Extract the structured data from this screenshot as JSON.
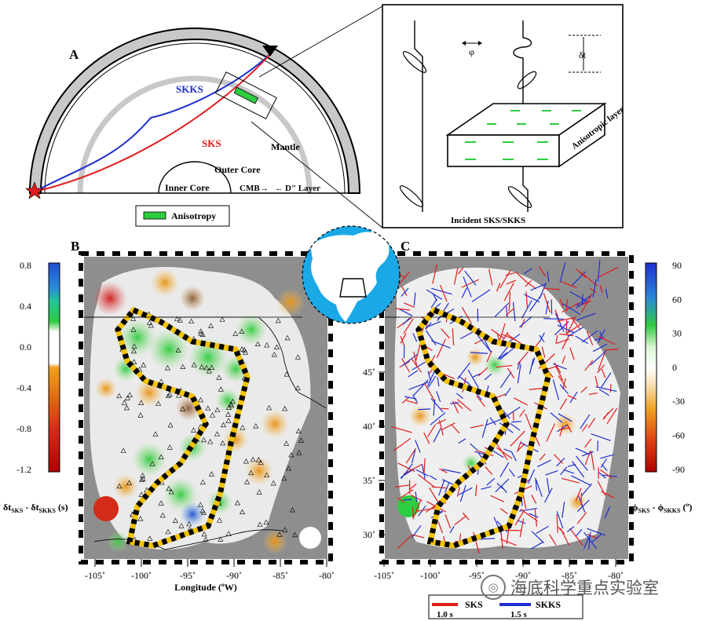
{
  "panels": {
    "a": "A",
    "b": "B",
    "c": "C"
  },
  "panel_a": {
    "ray1": "SKKS",
    "ray2": "SKS",
    "mantle": "Mantle",
    "outer_core": "Outer Core",
    "inner_core": "Inner Core",
    "cmb": "CMB",
    "d_layer": "D\" Layer",
    "legend_label": "Anisotropy",
    "colors": {
      "skks": "#1f2fd0",
      "sks": "#e01b1b",
      "anisotropy": "#2ecc40",
      "star": "#e01b1b",
      "shell": "#c8c8c8"
    }
  },
  "inset": {
    "phi": "φ",
    "dt": "δt",
    "layer_label": "Anisotropic layer",
    "incident": "Incident SKS/SKKS"
  },
  "panel_b": {
    "colorbar_ticks": [
      "0.8",
      "0.4",
      "0.0",
      "-0.4",
      "-0.8",
      "-1.2"
    ],
    "colorbar_label": "δt_SKS - δt_SKKS (s)",
    "x_ticks": [
      "-105˚",
      "-100˚",
      "-95˚",
      "-90˚",
      "-85˚",
      "-80˚"
    ],
    "x_label": "Longitude (ºW)"
  },
  "panel_c": {
    "colorbar_ticks": [
      "90",
      "60",
      "30",
      "0",
      "-30",
      "-60",
      "-90"
    ],
    "colorbar_label": "ϕ_SKS - ϕ_SKKS (º)",
    "y_ticks": [
      "45˚",
      "40˚",
      "35˚",
      "30˚"
    ],
    "x_ticks": [
      "-105˚",
      "-100˚",
      "-95˚",
      "-90˚",
      "-85˚",
      "-80˚"
    ],
    "legend": [
      {
        "label": "SKS",
        "scale": "1.0 s",
        "color": "#e01b1b"
      },
      {
        "label": "SKKS",
        "scale": "1.5 s",
        "color": "#1f2fd0"
      }
    ]
  },
  "watermark": "海底科学重点实验室"
}
